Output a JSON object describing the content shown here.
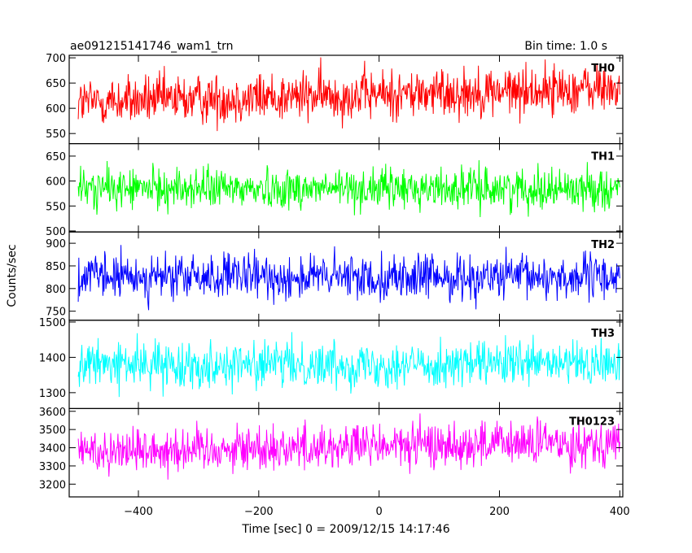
{
  "header": {
    "title": "ae091215141746_wam1_trn",
    "bin_time": "Bin time: 1.0 s"
  },
  "chart_data": {
    "type": "line",
    "xlabel": "Time [sec] 0 = 2009/12/15 14:17:46",
    "ylabel": "Counts/sec",
    "xlim": [
      -515,
      405
    ],
    "x_range": [
      -500,
      400
    ],
    "x_ticks": [
      -400,
      -200,
      0,
      200,
      400
    ],
    "x_tick_labels": [
      "−400",
      "−200",
      "0",
      "200",
      "400"
    ],
    "panels": [
      {
        "name": "TH0",
        "color": "#ff0000",
        "ylim": [
          530,
          705
        ],
        "y_ticks": [
          550,
          600,
          650,
          700
        ],
        "y_tick_labels": [
          "550",
          "600",
          "650",
          "700"
        ],
        "mean_start": 612,
        "mean_end": 640,
        "spread": 55
      },
      {
        "name": "TH1",
        "color": "#00ff00",
        "ylim": [
          498,
          675
        ],
        "y_ticks": [
          500,
          550,
          600,
          650
        ],
        "y_tick_labels": [
          "500",
          "550",
          "600",
          "650"
        ],
        "mean_start": 585,
        "mean_end": 585,
        "spread": 45
      },
      {
        "name": "TH2",
        "color": "#0000ff",
        "ylim": [
          730,
          925
        ],
        "y_ticks": [
          750,
          800,
          850,
          900
        ],
        "y_tick_labels": [
          "750",
          "800",
          "850",
          "900"
        ],
        "mean_start": 825,
        "mean_end": 825,
        "spread": 55
      },
      {
        "name": "TH3",
        "color": "#00ffff",
        "ylim": [
          1255,
          1505
        ],
        "y_ticks": [
          1300,
          1400,
          1500
        ],
        "y_tick_labels": [
          "1300",
          "1400",
          "1500"
        ],
        "mean_start": 1380,
        "mean_end": 1380,
        "spread": 70
      },
      {
        "name": "TH0123",
        "color": "#ff00ff",
        "ylim": [
          3130,
          3615
        ],
        "y_ticks": [
          3200,
          3300,
          3400,
          3500,
          3600
        ],
        "y_tick_labels": [
          "3200",
          "3300",
          "3400",
          "3500",
          "3600"
        ],
        "mean_start": 3385,
        "mean_end": 3430,
        "spread": 140
      }
    ]
  }
}
